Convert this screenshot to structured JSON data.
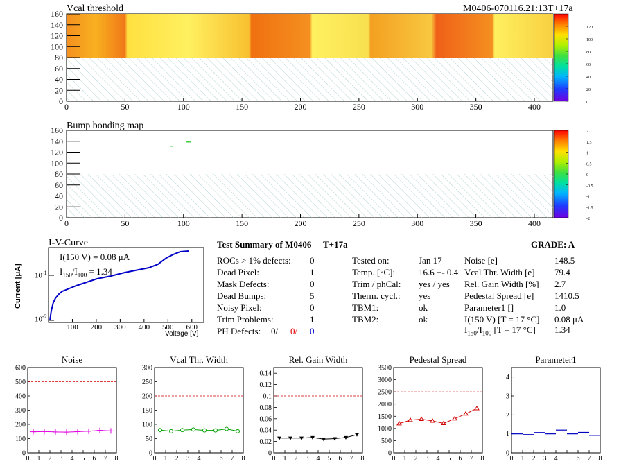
{
  "header": {
    "map1_title": "Vcal threshold",
    "module_id": "M0406-070116.21:13T+17a",
    "map2_title": "Bump bonding map"
  },
  "maps": {
    "x_ticks": [
      "0",
      "50",
      "100",
      "150",
      "200",
      "250",
      "300",
      "350",
      "400"
    ],
    "y_ticks": [
      "0",
      "20",
      "40",
      "60",
      "80",
      "100",
      "120",
      "140",
      "160"
    ],
    "x_max": 416,
    "y_max": 160,
    "cb1_ticks": [
      "0",
      "20",
      "40",
      "60",
      "80",
      "100",
      "120"
    ],
    "cb1_max": 140,
    "cb2_ticks": [
      "-2",
      "-1.5",
      "-1",
      "-0.5",
      "0",
      "0.5",
      "1",
      "1.5",
      "2"
    ]
  },
  "iv": {
    "title": "I-V-Curve",
    "ylabel": "Current [μA]",
    "xlabel": "Voltage [V]",
    "i150_label": "I(150 V) = 0.08 μA",
    "ratio_label_main": "I",
    "ratio_sub1": "150",
    "ratio_mid": "/I",
    "ratio_sub2": "100",
    "ratio_val": " =  1.34",
    "y_tick_top": "10",
    "y_tick_top_exp": "-1",
    "y_tick_bot": "10",
    "y_tick_bot_exp": "-2",
    "x_ticks": [
      "100",
      "200",
      "300",
      "400",
      "500",
      "600"
    ]
  },
  "summary": {
    "title": "Test Summary of M0406",
    "temp_tag": "T+17a",
    "grade_label": "GRADE:  A",
    "rows": [
      {
        "label": "ROCs > 1% defects:",
        "value": "0"
      },
      {
        "label": "Dead Pixel:",
        "value": "1"
      },
      {
        "label": "Mask Defects:",
        "value": "0"
      },
      {
        "label": "Dead Bumps:",
        "value": "5"
      },
      {
        "label": "Noisy Pixel:",
        "value": "0"
      },
      {
        "label": "Trim Problems:",
        "value": "1"
      }
    ],
    "ph_label": "PH Defects:",
    "ph_v1": "0/",
    "ph_v2": "0/",
    "ph_v3": "0",
    "col2": [
      {
        "label": "Tested on:",
        "value": "Jan 17"
      },
      {
        "label": "Temp. [°C]:",
        "value": "16.6 +- 0.4"
      },
      {
        "label": "Trim / phCal:",
        "value": "yes / yes"
      },
      {
        "label": "Therm. cycl.:",
        "value": "yes"
      },
      {
        "label": "TBM1:",
        "value": "ok"
      },
      {
        "label": "TBM2:",
        "value": "ok"
      }
    ],
    "col3": [
      {
        "label": "Noise [e]",
        "value": "148.5"
      },
      {
        "label": "Vcal Thr. Width [e]",
        "value": "79.4"
      },
      {
        "label": "Rel. Gain Width [%]",
        "value": "2.7"
      },
      {
        "label": "Pedestal Spread [e]",
        "value": "1410.5"
      },
      {
        "label": "Parameter1 []",
        "value": "1.0"
      },
      {
        "label": "I(150 V) [T = 17 °C]",
        "value": "0.08 μA"
      }
    ],
    "ratio_row": {
      "label_pre": "I",
      "sub1": "150",
      "mid": "/I",
      "sub2": "100",
      "label_post": " [T = 17 °C]",
      "value": "1.34"
    }
  },
  "chart_data": [
    {
      "type": "line",
      "title": "Noise",
      "x": [
        0.5,
        1.5,
        2.5,
        3.5,
        4.5,
        5.5,
        6.5,
        7.5
      ],
      "values": [
        148,
        150,
        147,
        146,
        149,
        152,
        158,
        154
      ],
      "ylim": [
        0,
        600
      ],
      "y_ticks": [
        "0",
        "100",
        "200",
        "300",
        "400",
        "500",
        "600"
      ],
      "x_ticks": [
        "0",
        "1",
        "2",
        "3",
        "4",
        "5",
        "6",
        "7",
        "8"
      ],
      "limit": 500,
      "color": "#e000e0",
      "marker": "cross"
    },
    {
      "type": "line",
      "title": "Vcal Thr. Width",
      "x": [
        0.5,
        1.5,
        2.5,
        3.5,
        4.5,
        5.5,
        6.5,
        7.5
      ],
      "values": [
        80,
        76,
        80,
        82,
        79,
        79,
        84,
        76
      ],
      "ylim": [
        0,
        300
      ],
      "y_ticks": [
        "0",
        "50",
        "100",
        "150",
        "200",
        "250",
        "300"
      ],
      "x_ticks": [
        "0",
        "1",
        "2",
        "3",
        "4",
        "5",
        "6",
        "7",
        "8"
      ],
      "limit": 200,
      "color": "#00a000",
      "marker": "circle"
    },
    {
      "type": "line",
      "title": "Rel. Gain Width",
      "x": [
        0.5,
        1.5,
        2.5,
        3.5,
        4.5,
        5.5,
        6.5,
        7.5
      ],
      "values": [
        0.026,
        0.026,
        0.026,
        0.027,
        0.024,
        0.025,
        0.027,
        0.032
      ],
      "ylim": [
        0,
        0.15
      ],
      "y_ticks": [
        "0",
        "0.02",
        "0.04",
        "0.06",
        "0.08",
        "0.1",
        "0.12",
        "0.14"
      ],
      "x_ticks": [
        "0",
        "1",
        "2",
        "3",
        "4",
        "5",
        "6",
        "7",
        "8"
      ],
      "limit": 0.1,
      "color": "#000000",
      "marker": "triangle"
    },
    {
      "type": "line",
      "title": "Pedestal Spread",
      "x": [
        0.5,
        1.5,
        2.5,
        3.5,
        4.5,
        5.5,
        6.5,
        7.5
      ],
      "values": [
        1200,
        1340,
        1380,
        1310,
        1210,
        1400,
        1600,
        1820
      ],
      "ylim": [
        0,
        3500
      ],
      "y_ticks": [
        "0",
        "500",
        "1000",
        "1500",
        "2000",
        "2500",
        "3000",
        "3500"
      ],
      "x_ticks": [
        "0",
        "1",
        "2",
        "3",
        "4",
        "5",
        "6",
        "7",
        "8"
      ],
      "limit": 2500,
      "color": "#d00000",
      "marker": "triangle-open"
    },
    {
      "type": "line",
      "title": "Parameter1",
      "x": [
        0.5,
        1.5,
        2.5,
        3.5,
        4.5,
        5.5,
        6.5,
        7.5
      ],
      "values": [
        1.0,
        0.96,
        1.07,
        1.0,
        1.2,
        1.0,
        1.08,
        0.92
      ],
      "ylim": [
        0,
        4.5
      ],
      "y_ticks": [
        "0",
        "1",
        "2",
        "3",
        "4"
      ],
      "x_ticks": [
        "0",
        "1",
        "2",
        "3",
        "4",
        "5",
        "6",
        "7",
        "8"
      ],
      "limit": null,
      "color": "#0000c0",
      "marker": "hbar"
    }
  ]
}
